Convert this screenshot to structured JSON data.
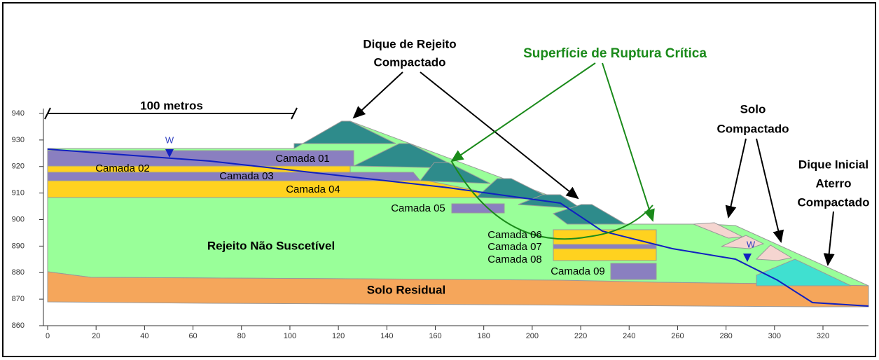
{
  "annotations": {
    "dique_rejeito": [
      "Dique de Rejeito",
      "Compactado"
    ],
    "ruptura": "Superfície de Ruptura Crítica",
    "solo_compactado": [
      "Solo",
      "Compactado"
    ],
    "dique_inicial": [
      "Dique Inicial",
      "Aterro",
      "Compactado"
    ]
  },
  "scale_bar": "100 metros",
  "water_markers": [
    "W",
    "W"
  ],
  "materials": {
    "rejeito": "Rejeito Não Suscetível",
    "solo_residual": "Solo Residual"
  },
  "layers": [
    "Camada 01",
    "Camada 02",
    "Camada 03",
    "Camada 04",
    "Camada 05",
    "Camada 06",
    "Camada 07",
    "Camada 08",
    "Camada 09"
  ],
  "x_axis": {
    "ticks": [
      0,
      20,
      40,
      60,
      80,
      100,
      120,
      140,
      160,
      180,
      200,
      220,
      240,
      260,
      280,
      300,
      320
    ]
  },
  "y_axis": {
    "ticks": [
      860,
      870,
      880,
      890,
      900,
      910,
      920,
      930,
      940
    ]
  }
}
